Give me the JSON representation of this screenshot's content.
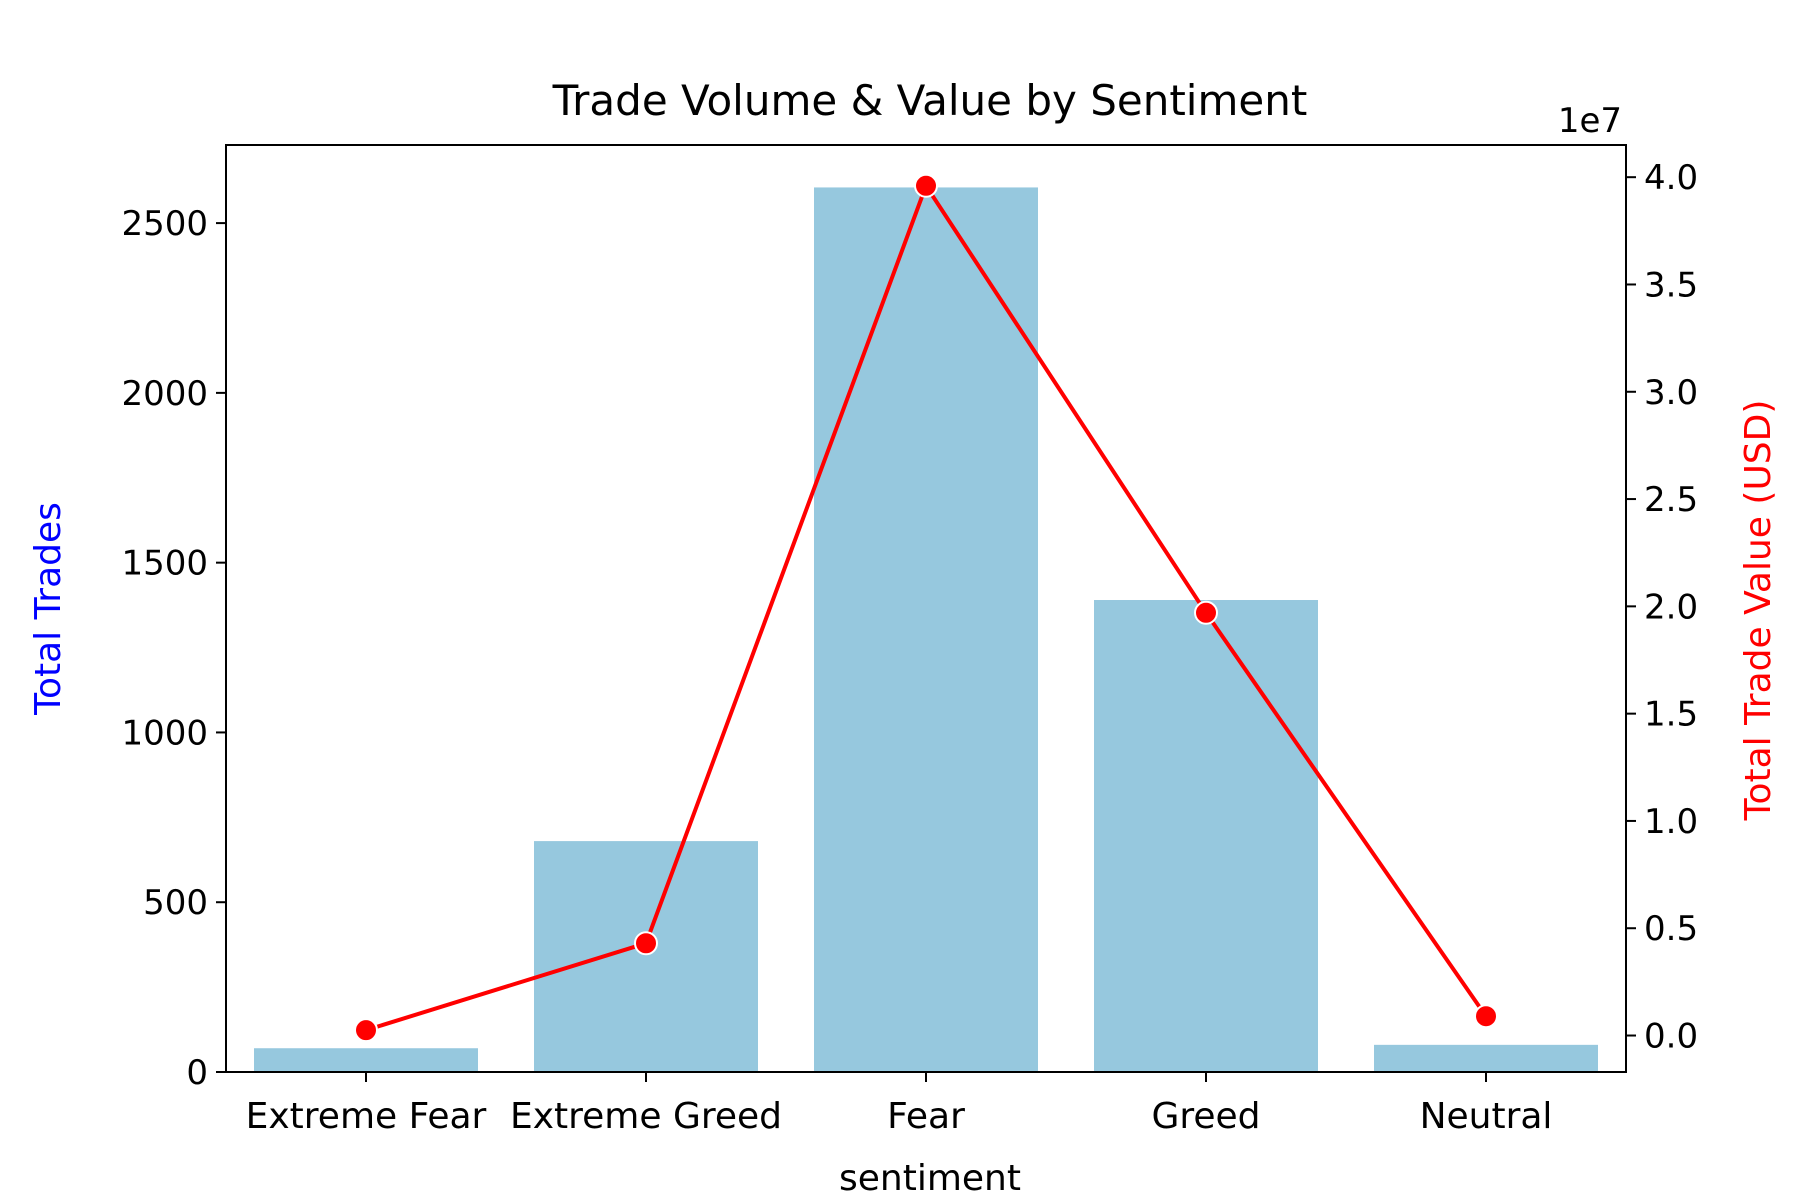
{
  "chart_data": {
    "type": "bar",
    "title": "Trade Volume & Value by Sentiment",
    "xlabel": "sentiment",
    "categories": [
      "Extreme Fear",
      "Extreme Greed",
      "Fear",
      "Greed",
      "Neutral"
    ],
    "bar_series": {
      "axis_label": "Total Trades",
      "values": [
        70,
        680,
        2605,
        1390,
        80
      ],
      "ylim": [
        0,
        2730
      ],
      "ticks": [
        "0",
        "500",
        "1000",
        "1500",
        "2000",
        "2500"
      ],
      "color": "#96c8de"
    },
    "line_series": {
      "axis_label": "Total Trade Value (USD)",
      "values": [
        250000.0,
        4300000.0,
        39600000.0,
        19700000.0,
        900000.0
      ],
      "ylim": [
        -1700000.0,
        41500000.0
      ],
      "ticks": [
        "0.0",
        "0.5",
        "1.0",
        "1.5",
        "2.0",
        "2.5",
        "3.0",
        "3.5",
        "4.0"
      ],
      "offset_label": "1e7",
      "color": "#ff0000"
    },
    "axis_label_colors": {
      "left": "#0000ff",
      "right": "#ff0000"
    },
    "grid": false
  }
}
